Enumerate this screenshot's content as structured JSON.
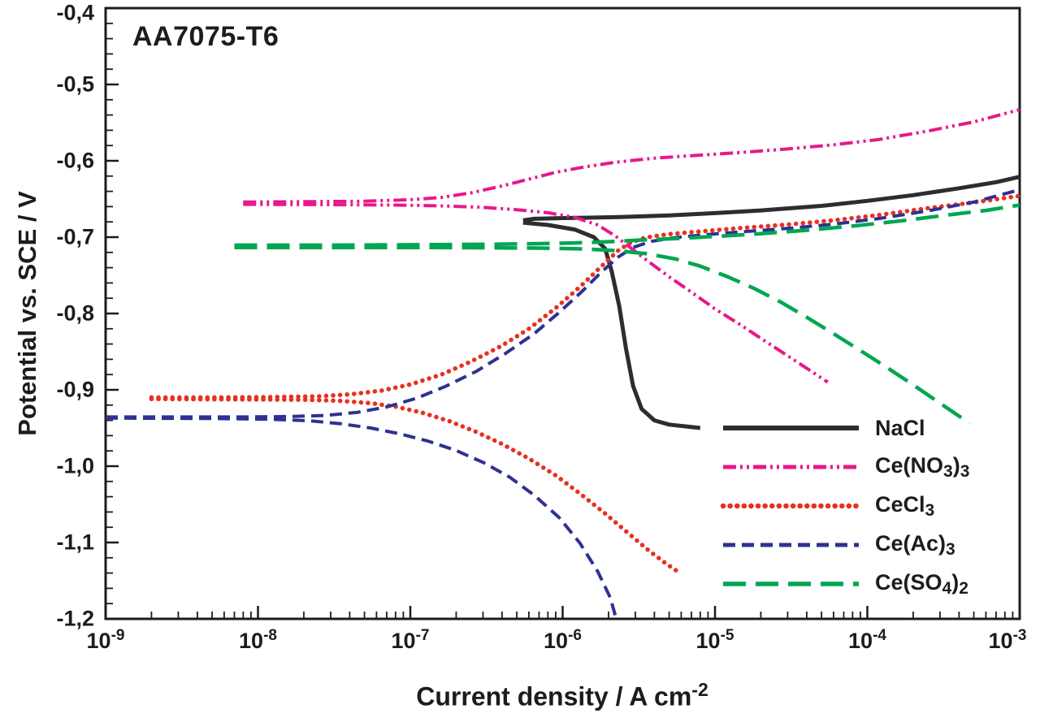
{
  "chart_data": {
    "type": "line",
    "title": "AA7075-T6",
    "ylabel": "Potential vs. SCE / V",
    "xlabel": {
      "text": "Current density / A cm",
      "sup": "-2"
    },
    "x_scale": "log",
    "xlim_exp": [
      -9,
      -3
    ],
    "ylim": [
      -1.2,
      -0.4
    ],
    "grid": false,
    "legend_position": "inside-bottom-right",
    "frame_color": "#1c1c1c",
    "background": "#ffffff",
    "y_minor_step": 0.02,
    "x_ticks": [
      {
        "base": "10",
        "exp": "-9"
      },
      {
        "base": "10",
        "exp": "-8"
      },
      {
        "base": "10",
        "exp": "-7"
      },
      {
        "base": "10",
        "exp": "-6"
      },
      {
        "base": "10",
        "exp": "-5"
      },
      {
        "base": "10",
        "exp": "-4"
      },
      {
        "base": "10",
        "exp": "-3"
      }
    ],
    "y_ticks": [
      {
        "value": -0.4,
        "label": "-0,4"
      },
      {
        "value": -0.5,
        "label": "-0,5"
      },
      {
        "value": -0.6,
        "label": "-0,6"
      },
      {
        "value": -0.7,
        "label": "-0,7"
      },
      {
        "value": -0.8,
        "label": "-0,8"
      },
      {
        "value": -0.9,
        "label": "-0,9"
      },
      {
        "value": -1.0,
        "label": "-1,0"
      },
      {
        "value": -1.1,
        "label": "-1,1"
      },
      {
        "value": -1.2,
        "label": "-1,2"
      }
    ],
    "series": [
      {
        "id": "nacl",
        "name": "NaCl",
        "label_parts": [
          {
            "t": "NaCl"
          }
        ],
        "color": "#2d2d2d",
        "dash": "solid",
        "width": 5,
        "branches": [
          {
            "points": [
              [
                5.5e-07,
                -0.678
              ],
              [
                6.5e-07,
                -0.676
              ],
              [
                8e-07,
                -0.6755
              ],
              [
                1e-06,
                -0.675
              ],
              [
                1.5e-06,
                -0.6745
              ],
              [
                2.5e-06,
                -0.6735
              ],
              [
                5e-06,
                -0.6715
              ],
              [
                1e-05,
                -0.6685
              ],
              [
                2e-05,
                -0.665
              ],
              [
                5e-05,
                -0.659
              ],
              [
                0.0001,
                -0.6525
              ],
              [
                0.0002,
                -0.645
              ],
              [
                0.0004,
                -0.636
              ],
              [
                0.0007,
                -0.628
              ],
              [
                0.001,
                -0.621
              ]
            ]
          },
          {
            "points": [
              [
                5.5e-07,
                -0.681
              ],
              [
                8e-07,
                -0.684
              ],
              [
                1.2e-06,
                -0.69
              ],
              [
                1.6e-06,
                -0.7
              ],
              [
                1.9e-06,
                -0.715
              ],
              [
                2.1e-06,
                -0.745
              ],
              [
                2.35e-06,
                -0.79
              ],
              [
                2.6e-06,
                -0.845
              ],
              [
                2.9e-06,
                -0.895
              ],
              [
                3.3e-06,
                -0.925
              ],
              [
                4e-06,
                -0.94
              ],
              [
                5e-06,
                -0.9455
              ],
              [
                6.5e-06,
                -0.948
              ],
              [
                8e-06,
                -0.95
              ]
            ]
          }
        ]
      },
      {
        "id": "ce-no3",
        "name": "Ce(NO3)3",
        "label_parts": [
          {
            "t": "Ce(NO"
          },
          {
            "s": "3"
          },
          {
            "t": ")"
          },
          {
            "s": "3"
          }
        ],
        "color": "#e81889",
        "dash": "dashdotdot",
        "width": 4,
        "branches": [
          {
            "points": [
              [
                8e-09,
                -0.654
              ],
              [
                2e-08,
                -0.6535
              ],
              [
                5e-08,
                -0.653
              ],
              [
                1e-07,
                -0.651
              ],
              [
                1.6e-07,
                -0.648
              ],
              [
                2.5e-07,
                -0.642
              ],
              [
                4e-07,
                -0.633
              ],
              [
                6e-07,
                -0.624
              ],
              [
                9e-07,
                -0.615
              ],
              [
                1.4e-06,
                -0.608
              ],
              [
                2.2e-06,
                -0.602
              ],
              [
                4e-06,
                -0.5965
              ],
              [
                8e-06,
                -0.5925
              ],
              [
                1.5e-05,
                -0.589
              ],
              [
                3e-05,
                -0.5845
              ],
              [
                6e-05,
                -0.579
              ],
              [
                0.00012,
                -0.572
              ],
              [
                0.00025,
                -0.561
              ],
              [
                0.0005,
                -0.549
              ],
              [
                0.001,
                -0.533
              ]
            ]
          },
          {
            "points": [
              [
                8e-09,
                -0.657
              ],
              [
                3e-08,
                -0.6575
              ],
              [
                8e-08,
                -0.658
              ],
              [
                1.6e-07,
                -0.659
              ],
              [
                3e-07,
                -0.661
              ],
              [
                5e-07,
                -0.664
              ],
              [
                8e-07,
                -0.668
              ],
              [
                1.2e-06,
                -0.674
              ],
              [
                1.7e-06,
                -0.684
              ],
              [
                2.2e-06,
                -0.698
              ],
              [
                2.8e-06,
                -0.714
              ],
              [
                3.6e-06,
                -0.731
              ],
              [
                5e-06,
                -0.752
              ],
              [
                7e-06,
                -0.772
              ],
              [
                1e-05,
                -0.794
              ],
              [
                1.5e-05,
                -0.816
              ],
              [
                2.2e-05,
                -0.838
              ],
              [
                3.2e-05,
                -0.859
              ],
              [
                4.3e-05,
                -0.876
              ],
              [
                5.5e-05,
                -0.89
              ]
            ]
          }
        ]
      },
      {
        "id": "cecl3",
        "name": "CeCl3",
        "label_parts": [
          {
            "t": "CeCl"
          },
          {
            "s": "3"
          }
        ],
        "color": "#e8301f",
        "dash": "dotted",
        "width": 5.5,
        "branches": [
          {
            "points": [
              [
                2e-09,
                -0.91
              ],
              [
                5e-09,
                -0.91
              ],
              [
                1.2e-08,
                -0.9095
              ],
              [
                2.5e-08,
                -0.9085
              ],
              [
                4e-08,
                -0.906
              ],
              [
                6.5e-08,
                -0.901
              ],
              [
                1e-07,
                -0.893
              ],
              [
                1.6e-07,
                -0.88
              ],
              [
                2.5e-07,
                -0.863
              ],
              [
                4e-07,
                -0.842
              ],
              [
                6e-07,
                -0.82
              ],
              [
                9e-07,
                -0.793
              ],
              [
                1.3e-06,
                -0.765
              ],
              [
                1.8e-06,
                -0.738
              ],
              [
                2.3e-06,
                -0.718
              ],
              [
                2.8e-06,
                -0.707
              ],
              [
                3.5e-06,
                -0.7005
              ],
              [
                5e-06,
                -0.696
              ],
              [
                8e-06,
                -0.6925
              ],
              [
                1.5e-05,
                -0.688
              ],
              [
                3e-05,
                -0.6835
              ],
              [
                6e-05,
                -0.678
              ],
              [
                0.00012,
                -0.671
              ],
              [
                0.00025,
                -0.662
              ],
              [
                0.0005,
                -0.6545
              ],
              [
                0.001,
                -0.646
              ]
            ]
          },
          {
            "points": [
              [
                2e-09,
                -0.912
              ],
              [
                8e-09,
                -0.9125
              ],
              [
                2e-08,
                -0.913
              ],
              [
                3.5e-08,
                -0.9145
              ],
              [
                5.5e-08,
                -0.9175
              ],
              [
                8e-08,
                -0.922
              ],
              [
                1.2e-07,
                -0.93
              ],
              [
                1.8e-07,
                -0.941
              ],
              [
                2.7e-07,
                -0.955
              ],
              [
                4e-07,
                -0.971
              ],
              [
                6e-07,
                -0.99
              ],
              [
                9e-07,
                -1.012
              ],
              [
                1.3e-06,
                -1.036
              ],
              [
                1.9e-06,
                -1.062
              ],
              [
                2.7e-06,
                -1.088
              ],
              [
                3.7e-06,
                -1.111
              ],
              [
                4.8e-06,
                -1.128
              ],
              [
                5.8e-06,
                -1.139
              ]
            ]
          }
        ]
      },
      {
        "id": "ce-ac",
        "name": "Ce(Ac)3",
        "label_parts": [
          {
            "t": "Ce(Ac)"
          },
          {
            "s": "3"
          }
        ],
        "color": "#2e3192",
        "dash": "dashed",
        "width": 4,
        "branches": [
          {
            "points": [
              [
                1e-09,
                -0.9355
              ],
              [
                3e-09,
                -0.9355
              ],
              [
                8e-09,
                -0.9355
              ],
              [
                1.6e-08,
                -0.935
              ],
              [
                2.8e-08,
                -0.9335
              ],
              [
                4.5e-08,
                -0.9295
              ],
              [
                7e-08,
                -0.9225
              ],
              [
                1.1e-07,
                -0.911
              ],
              [
                1.7e-07,
                -0.8955
              ],
              [
                2.7e-07,
                -0.876
              ],
              [
                4.2e-07,
                -0.8525
              ],
              [
                6.5e-07,
                -0.8265
              ],
              [
                9.5e-07,
                -0.7985
              ],
              [
                1.35e-06,
                -0.7705
              ],
              [
                1.8e-06,
                -0.7455
              ],
              [
                2.3e-06,
                -0.7265
              ],
              [
                2.9e-06,
                -0.7135
              ],
              [
                3.8e-06,
                -0.7055
              ],
              [
                5.5e-06,
                -0.7005
              ],
              [
                9e-06,
                -0.6965
              ],
              [
                1.6e-05,
                -0.6925
              ],
              [
                3e-05,
                -0.6885
              ],
              [
                6e-05,
                -0.683
              ],
              [
                0.00012,
                -0.6755
              ],
              [
                0.00025,
                -0.6655
              ],
              [
                0.0005,
                -0.654
              ],
              [
                0.001,
                -0.638
              ]
            ]
          },
          {
            "points": [
              [
                1e-09,
                -0.937
              ],
              [
                5e-09,
                -0.9375
              ],
              [
                1.2e-08,
                -0.9385
              ],
              [
                2.2e-08,
                -0.9405
              ],
              [
                3.5e-08,
                -0.9445
              ],
              [
                5.5e-08,
                -0.95
              ],
              [
                8.5e-08,
                -0.9575
              ],
              [
                1.3e-07,
                -0.967
              ],
              [
                2e-07,
                -0.9795
              ],
              [
                3e-07,
                -0.995
              ],
              [
                4.5e-07,
                -1.0145
              ],
              [
                6.5e-07,
                -1.038
              ],
              [
                9.5e-07,
                -1.0675
              ],
              [
                1.3e-06,
                -1.101
              ],
              [
                1.7e-06,
                -1.138
              ],
              [
                2.05e-06,
                -1.172
              ],
              [
                2.25e-06,
                -1.2
              ]
            ]
          }
        ]
      },
      {
        "id": "ce-so4",
        "name": "Ce(SO4)2",
        "label_parts": [
          {
            "t": "Ce(SO"
          },
          {
            "s": "4"
          },
          {
            "t": ")"
          },
          {
            "s": "2"
          }
        ],
        "color": "#00a651",
        "dash": "longdash",
        "width": 4.5,
        "branches": [
          {
            "points": [
              [
                7e-09,
                -0.7105
              ],
              [
                3e-08,
                -0.7105
              ],
              [
                1e-07,
                -0.71
              ],
              [
                3e-07,
                -0.7095
              ],
              [
                7e-07,
                -0.7085
              ],
              [
                1.2e-06,
                -0.7075
              ],
              [
                2e-06,
                -0.706
              ],
              [
                3.5e-06,
                -0.7035
              ],
              [
                6e-06,
                -0.7015
              ],
              [
                1e-05,
                -0.699
              ],
              [
                2e-05,
                -0.6955
              ],
              [
                4e-05,
                -0.691
              ],
              [
                8e-05,
                -0.6855
              ],
              [
                0.00016,
                -0.679
              ],
              [
                0.00032,
                -0.6715
              ],
              [
                0.0006,
                -0.665
              ],
              [
                0.001,
                -0.658
              ]
            ]
          },
          {
            "points": [
              [
                7e-09,
                -0.7135
              ],
              [
                4e-08,
                -0.7135
              ],
              [
                1.5e-07,
                -0.7135
              ],
              [
                4e-07,
                -0.714
              ],
              [
                8e-07,
                -0.7145
              ],
              [
                1.4e-06,
                -0.7155
              ],
              [
                2.2e-06,
                -0.7175
              ],
              [
                3.5e-06,
                -0.7215
              ],
              [
                5.5e-06,
                -0.7285
              ],
              [
                8e-06,
                -0.738
              ],
              [
                1.2e-05,
                -0.7515
              ],
              [
                1.8e-05,
                -0.767
              ],
              [
                2.7e-05,
                -0.785
              ],
              [
                4e-05,
                -0.805
              ],
              [
                6e-05,
                -0.8265
              ],
              [
                9e-05,
                -0.8485
              ],
              [
                0.000135,
                -0.871
              ],
              [
                0.0002,
                -0.8935
              ],
              [
                0.00029,
                -0.9155
              ],
              [
                0.0004,
                -0.9345
              ],
              [
                0.00047,
                -0.9435
              ]
            ]
          }
        ]
      }
    ]
  }
}
